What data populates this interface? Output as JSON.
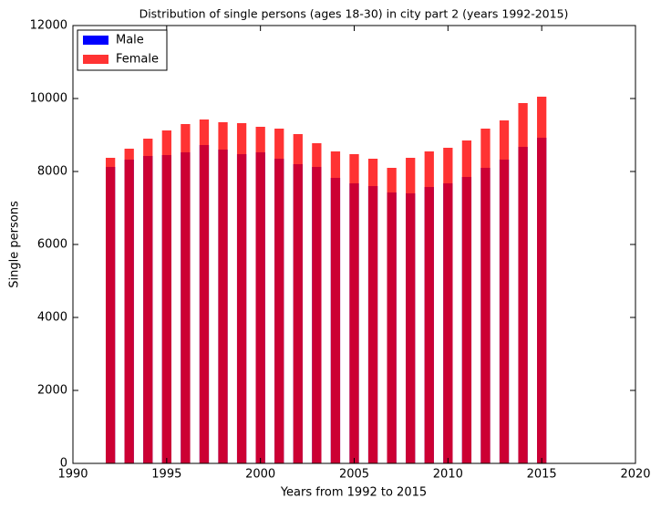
{
  "chart_data": {
    "type": "bar",
    "title": "Distribution of single persons (ages 18-30) in city part 2 (years 1992-2015)",
    "xlabel": "Years from 1992 to 2015",
    "ylabel": "Single persons",
    "x": [
      1992,
      1993,
      1994,
      1995,
      1996,
      1997,
      1998,
      1999,
      2000,
      2001,
      2002,
      2003,
      2004,
      2005,
      2006,
      2007,
      2008,
      2009,
      2010,
      2011,
      2012,
      2013,
      2014,
      2015
    ],
    "series": [
      {
        "name": "Male",
        "color": "#0000ff",
        "values": [
          8125,
          8325,
          8425,
          8450,
          8525,
          8725,
          8600,
          8475,
          8525,
          8350,
          8200,
          8125,
          7825,
          7675,
          7600,
          7425,
          7400,
          7575,
          7675,
          7850,
          8100,
          8325,
          8675,
          8925
        ]
      },
      {
        "name": "Female",
        "color": "#ff0000",
        "values": [
          8375,
          8625,
          8900,
          9125,
          9300,
          9425,
          9350,
          9325,
          9225,
          9175,
          9025,
          8775,
          8550,
          8475,
          8350,
          8100,
          8375,
          8550,
          8650,
          8850,
          9175,
          9400,
          9875,
          10050
        ]
      }
    ],
    "xlim": [
      1990,
      2020
    ],
    "xticks": [
      1990,
      1995,
      2000,
      2005,
      2010,
      2015,
      2020
    ],
    "ylim": [
      0,
      12000
    ],
    "yticks": [
      0,
      2000,
      4000,
      6000,
      8000,
      10000,
      12000
    ],
    "legend": "upper left"
  }
}
